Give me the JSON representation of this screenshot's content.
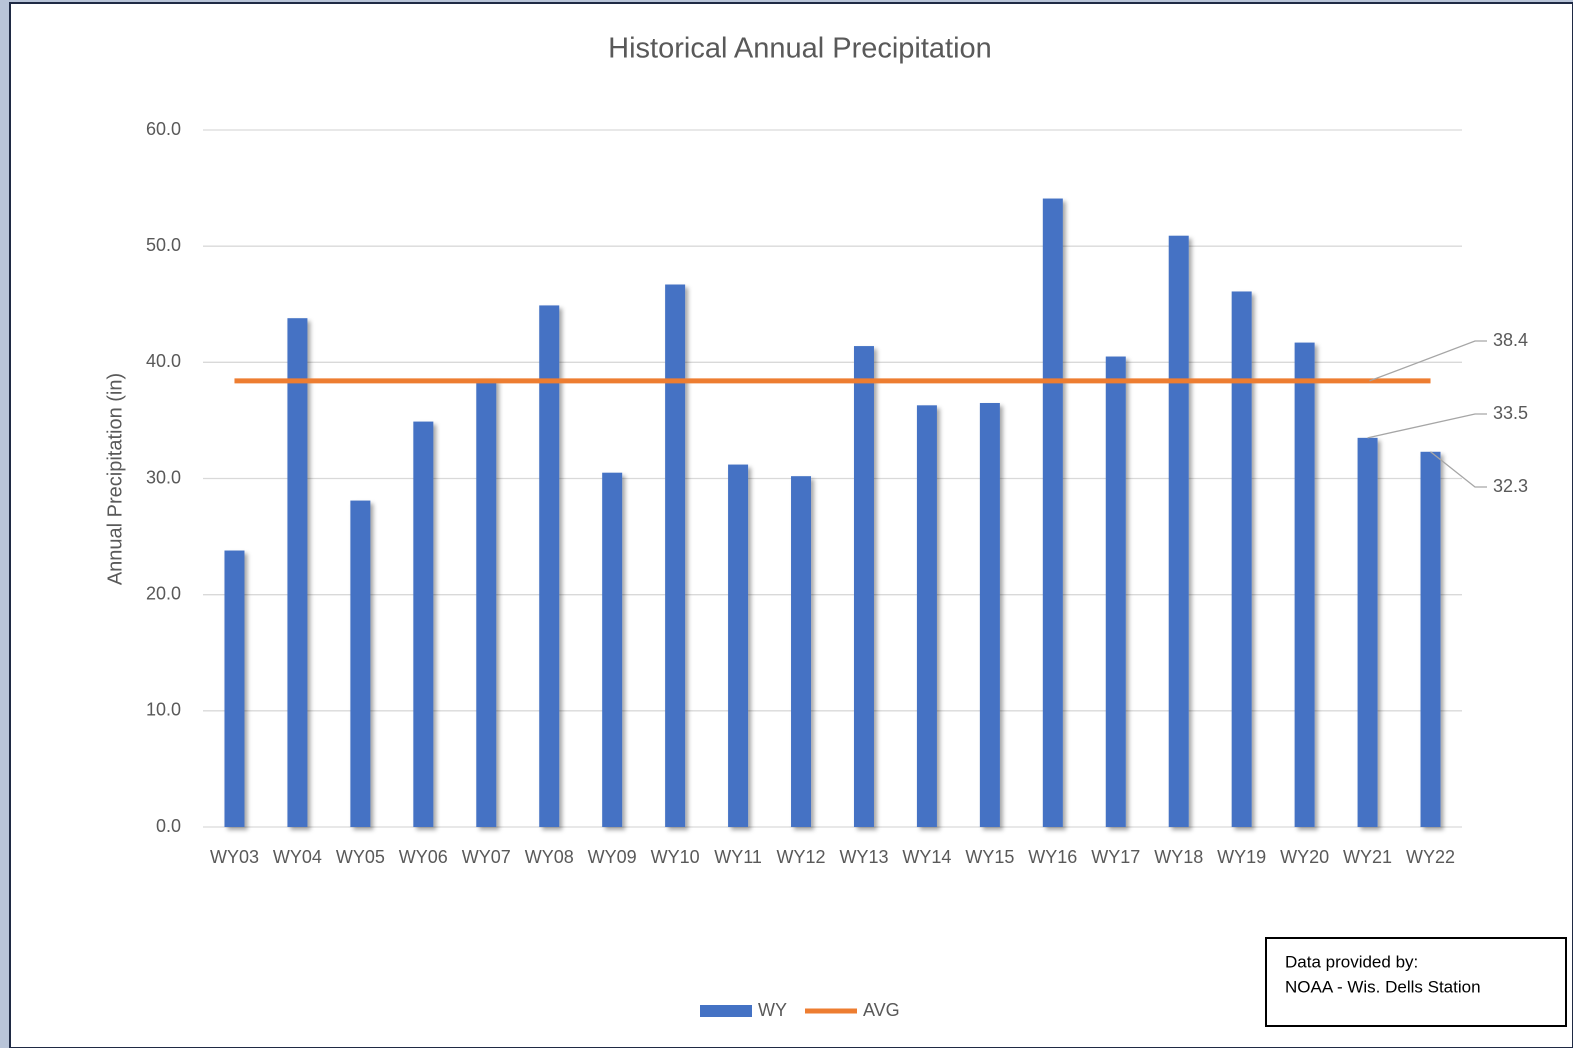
{
  "chart_data": {
    "type": "bar",
    "title": "Historical Annual Precipitation",
    "y_label": "Annual Precipitation (in)",
    "categories": [
      "WY03",
      "WY04",
      "WY05",
      "WY06",
      "WY07",
      "WY08",
      "WY09",
      "WY10",
      "WY11",
      "WY12",
      "WY13",
      "WY14",
      "WY15",
      "WY16",
      "WY17",
      "WY18",
      "WY19",
      "WY20",
      "WY21",
      "WY22"
    ],
    "series": [
      {
        "name": "WY",
        "color": "#4472c4",
        "type": "bar",
        "values": [
          23.8,
          43.8,
          28.1,
          34.9,
          38.6,
          44.9,
          30.5,
          46.7,
          31.2,
          30.2,
          41.4,
          36.3,
          36.5,
          54.1,
          40.5,
          50.9,
          46.1,
          41.7,
          33.5,
          32.3
        ],
        "value_labels": [
          null,
          null,
          null,
          null,
          null,
          null,
          null,
          null,
          null,
          null,
          null,
          null,
          null,
          null,
          null,
          null,
          null,
          null,
          "33.5",
          "32.3"
        ]
      },
      {
        "name": "AVG",
        "color": "#ed7d31",
        "type": "line",
        "values": [
          38.4,
          38.4,
          38.4,
          38.4,
          38.4,
          38.4,
          38.4,
          38.4,
          38.4,
          38.4,
          38.4,
          38.4,
          38.4,
          38.4,
          38.4,
          38.4,
          38.4,
          38.4,
          38.4,
          38.4
        ],
        "value_labels": [
          null,
          null,
          null,
          null,
          null,
          null,
          null,
          null,
          null,
          null,
          null,
          null,
          null,
          null,
          null,
          null,
          null,
          null,
          null,
          "38.4"
        ]
      }
    ],
    "ylim": [
      0,
      60
    ],
    "yticks": [
      {
        "value": 0,
        "label": "0.0"
      },
      {
        "value": 10,
        "label": "10.0"
      },
      {
        "value": 20,
        "label": "20.0"
      },
      {
        "value": 30,
        "label": "30.0"
      },
      {
        "value": 40,
        "label": "40.0"
      },
      {
        "value": 50,
        "label": "50.0"
      },
      {
        "value": 60,
        "label": "60.0"
      }
    ],
    "grid": true,
    "legend": "bottom",
    "note": [
      "Data provided by:",
      "NOAA - Wis. Dells Station"
    ]
  }
}
